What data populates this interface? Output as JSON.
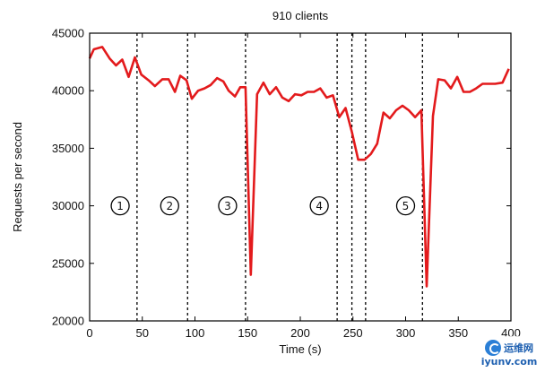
{
  "chart_data": {
    "type": "line",
    "title": "910 clients",
    "xlabel": "Time (s)",
    "ylabel": "Requests per second",
    "xlim": [
      0,
      400
    ],
    "ylim": [
      20000,
      45000
    ],
    "xticks": [
      0,
      50,
      100,
      150,
      200,
      250,
      300,
      350,
      400
    ],
    "yticks": [
      20000,
      25000,
      30000,
      35000,
      40000,
      45000
    ],
    "grid": false,
    "legend": "none",
    "series": [
      {
        "color": "#e31a1c",
        "points": [
          [
            0,
            42800
          ],
          [
            4,
            43600
          ],
          [
            12,
            43800
          ],
          [
            19,
            42800
          ],
          [
            25,
            42200
          ],
          [
            31,
            42700
          ],
          [
            37,
            41200
          ],
          [
            43,
            42900
          ],
          [
            49,
            41400
          ],
          [
            56,
            40900
          ],
          [
            62,
            40400
          ],
          [
            69,
            41000
          ],
          [
            75,
            41000
          ],
          [
            81,
            39900
          ],
          [
            86,
            41300
          ],
          [
            92,
            40900
          ],
          [
            97,
            39300
          ],
          [
            103,
            40000
          ],
          [
            109,
            40200
          ],
          [
            115,
            40500
          ],
          [
            121,
            41100
          ],
          [
            127,
            40800
          ],
          [
            132,
            40000
          ],
          [
            138,
            39500
          ],
          [
            143,
            40300
          ],
          [
            148,
            40300
          ],
          [
            153,
            24000
          ],
          [
            159,
            39700
          ],
          [
            165,
            40700
          ],
          [
            171,
            39700
          ],
          [
            177,
            40300
          ],
          [
            183,
            39400
          ],
          [
            189,
            39100
          ],
          [
            195,
            39700
          ],
          [
            201,
            39600
          ],
          [
            207,
            39900
          ],
          [
            213,
            39900
          ],
          [
            219,
            40200
          ],
          [
            225,
            39400
          ],
          [
            231,
            39600
          ],
          [
            237,
            37700
          ],
          [
            243,
            38500
          ],
          [
            249,
            36400
          ],
          [
            255,
            34000
          ],
          [
            261,
            34000
          ],
          [
            267,
            34500
          ],
          [
            273,
            35400
          ],
          [
            279,
            38100
          ],
          [
            285,
            37600
          ],
          [
            291,
            38300
          ],
          [
            297,
            38700
          ],
          [
            303,
            38300
          ],
          [
            309,
            37700
          ],
          [
            315,
            38300
          ],
          [
            320,
            23000
          ],
          [
            326,
            37800
          ],
          [
            331,
            41000
          ],
          [
            337,
            40900
          ],
          [
            343,
            40200
          ],
          [
            349,
            41200
          ],
          [
            355,
            39900
          ],
          [
            361,
            39900
          ],
          [
            367,
            40200
          ],
          [
            373,
            40600
          ],
          [
            379,
            40600
          ],
          [
            385,
            40600
          ],
          [
            392,
            40700
          ],
          [
            398,
            41900
          ]
        ]
      }
    ],
    "vlines": [
      45,
      93,
      148,
      235,
      249,
      262,
      316
    ],
    "phases": [
      {
        "label": "①",
        "x": 29,
        "y": 30000
      },
      {
        "label": "②",
        "x": 76,
        "y": 30000
      },
      {
        "label": "③",
        "x": 131,
        "y": 30000
      },
      {
        "label": "④",
        "x": 218,
        "y": 30000
      },
      {
        "label": "⑤",
        "x": 300,
        "y": 30000
      }
    ]
  },
  "watermark": {
    "site_cn": "运维网",
    "site_url": "iyunv.com"
  }
}
